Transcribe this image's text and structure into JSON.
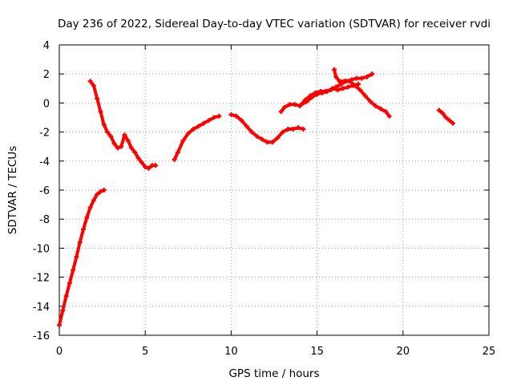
{
  "chart_data": {
    "type": "line",
    "title": "Day 236 of 2022, Sidereal Day-to-day VTEC variation (SDTVAR) for receiver rvdi",
    "xlabel": "GPS time / hours",
    "ylabel": "SDTVAR / TECUs",
    "xlim": [
      0,
      25
    ],
    "ylim": [
      -16,
      4
    ],
    "xticks": [
      0,
      5,
      10,
      15,
      20,
      25
    ],
    "yticks": [
      4,
      2,
      0,
      -2,
      -4,
      -6,
      -8,
      -10,
      -12,
      -14,
      -16
    ],
    "grid": true,
    "series_color": "#ff0000",
    "segments": [
      {
        "name": "arc-1",
        "x": [
          0.0,
          0.2,
          0.4,
          0.6,
          0.8,
          1.0,
          1.2,
          1.4,
          1.6,
          1.8,
          2.0,
          2.2,
          2.4,
          2.6
        ],
        "y": [
          -15.3,
          -14.3,
          -13.3,
          -12.4,
          -11.5,
          -10.6,
          -9.6,
          -8.7,
          -7.9,
          -7.2,
          -6.7,
          -6.3,
          -6.1,
          -6.0
        ]
      },
      {
        "name": "arc-2",
        "x": [
          1.8,
          2.0,
          2.2,
          2.4,
          2.6,
          2.8,
          3.0,
          3.2,
          3.4,
          3.6,
          3.8,
          4.0,
          4.2,
          4.4,
          4.6,
          4.8,
          5.0,
          5.2,
          5.4,
          5.6
        ],
        "y": [
          1.5,
          1.2,
          0.3,
          -0.6,
          -1.5,
          -2.0,
          -2.3,
          -2.8,
          -3.1,
          -3.0,
          -2.2,
          -2.6,
          -3.1,
          -3.4,
          -3.8,
          -4.1,
          -4.4,
          -4.5,
          -4.3,
          -4.3
        ]
      },
      {
        "name": "arc-3",
        "x": [
          6.7,
          6.9,
          7.2,
          7.5,
          7.8,
          8.1,
          8.4,
          8.7,
          9.0,
          9.3
        ],
        "y": [
          -3.9,
          -3.4,
          -2.6,
          -2.1,
          -1.8,
          -1.6,
          -1.4,
          -1.2,
          -1.0,
          -0.9
        ]
      },
      {
        "name": "arc-4",
        "x": [
          10.0,
          10.3,
          10.6,
          10.9,
          11.2,
          11.5,
          11.8,
          12.1,
          12.4,
          12.7,
          13.0,
          13.3,
          13.6,
          13.9,
          14.2
        ],
        "y": [
          -0.8,
          -0.9,
          -1.2,
          -1.6,
          -2.0,
          -2.3,
          -2.5,
          -2.7,
          -2.7,
          -2.4,
          -2.0,
          -1.8,
          -1.8,
          -1.7,
          -1.8
        ]
      },
      {
        "name": "arc-5",
        "x": [
          12.9,
          13.1,
          13.4,
          13.7,
          14.0,
          14.3,
          14.6,
          14.9,
          15.2,
          15.5,
          15.8,
          16.1,
          16.4,
          16.7,
          17.0,
          17.3,
          17.6,
          17.9,
          18.2
        ],
        "y": [
          -0.6,
          -0.3,
          -0.1,
          -0.1,
          -0.2,
          0.2,
          0.5,
          0.7,
          0.8,
          0.8,
          0.9,
          1.1,
          1.3,
          1.5,
          1.6,
          1.7,
          1.7,
          1.8,
          2.0
        ]
      },
      {
        "name": "arc-6",
        "x": [
          14.1,
          14.4,
          14.7,
          15.0,
          15.3,
          15.6,
          15.9,
          16.2,
          16.5,
          16.8,
          17.1,
          17.4
        ],
        "y": [
          -0.1,
          0.1,
          0.4,
          0.6,
          0.7,
          0.8,
          1.0,
          0.9,
          1.0,
          1.1,
          1.2,
          1.3
        ]
      },
      {
        "name": "arc-7",
        "x": [
          16.0,
          16.1,
          16.3,
          16.6,
          16.9,
          17.2,
          17.5,
          17.8,
          18.1,
          18.4,
          18.7,
          19.0,
          19.2
        ],
        "y": [
          2.3,
          1.8,
          1.5,
          1.5,
          1.5,
          1.2,
          0.9,
          0.5,
          0.1,
          -0.2,
          -0.4,
          -0.6,
          -0.9
        ]
      },
      {
        "name": "arc-8",
        "x": [
          22.1,
          22.3,
          22.5,
          22.7,
          22.9
        ],
        "y": [
          -0.5,
          -0.7,
          -1.0,
          -1.2,
          -1.4
        ]
      }
    ]
  }
}
